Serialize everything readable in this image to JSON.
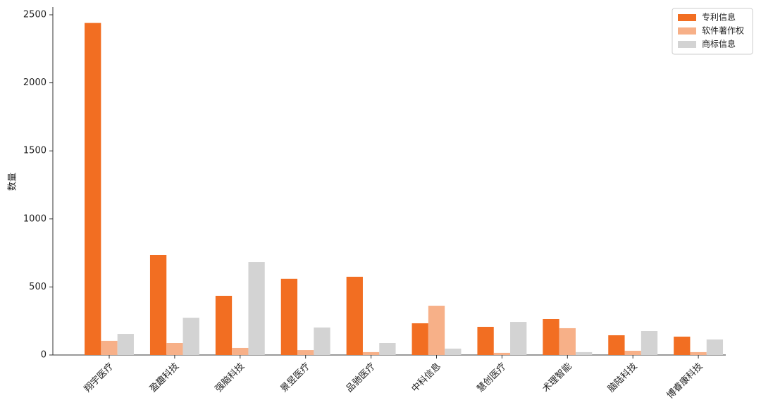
{
  "chart_data": {
    "type": "bar",
    "y_label": "数量",
    "categories": [
      "翔宇医疗",
      "盈趣科技",
      "强脑科技",
      "景昱医疗",
      "品驰医疗",
      "中科信息",
      "慧创医疗",
      "术理智能",
      "脑陆科技",
      "博睿康科技"
    ],
    "series": [
      {
        "name": "专利信息",
        "color": "#f26e22",
        "values": [
          2440,
          735,
          435,
          560,
          575,
          233,
          207,
          264,
          145,
          135
        ]
      },
      {
        "name": "软件著作权",
        "color": "#f7b088",
        "values": [
          104,
          88,
          52,
          36,
          21,
          362,
          16,
          197,
          31,
          21
        ]
      },
      {
        "name": "商标信息",
        "color": "#d3d3d3",
        "values": [
          155,
          274,
          683,
          202,
          88,
          47,
          243,
          21,
          176,
          114
        ]
      }
    ],
    "ylim": [
      0,
      2500
    ],
    "yticks": [
      0,
      500,
      1000,
      1500,
      2000,
      2500
    ],
    "legend": "upper right"
  }
}
